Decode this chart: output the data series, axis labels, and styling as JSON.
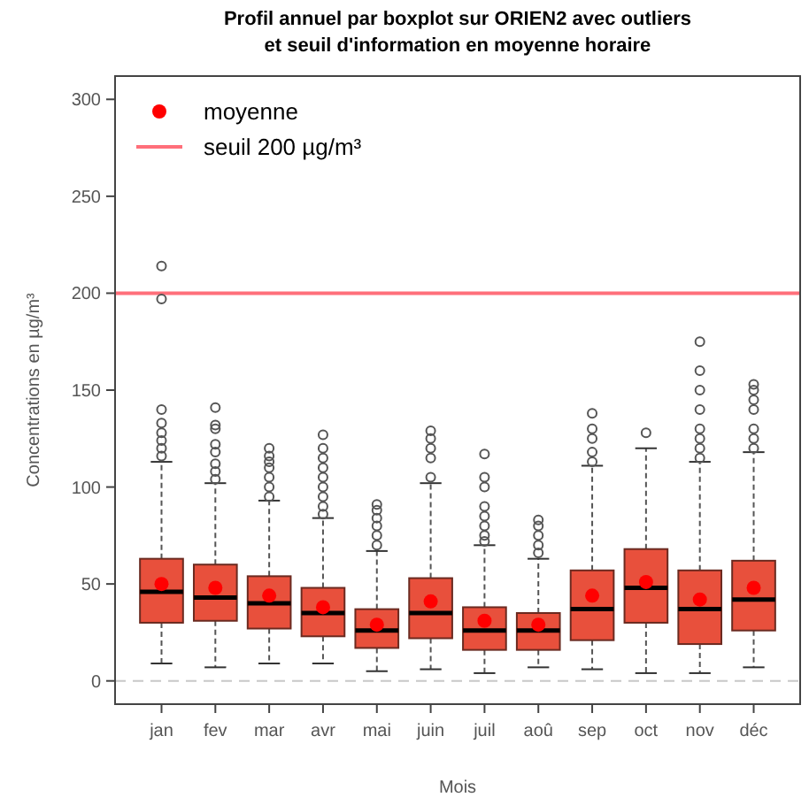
{
  "chart_data": {
    "type": "box",
    "title": "Profil annuel par boxplot sur ORIEN2 avec outliers\net seuil d'information en moyenne horaire",
    "xlabel": "Mois",
    "ylabel": "Concentrations en µg/m³",
    "categories": [
      "jan",
      "fev",
      "mar",
      "avr",
      "mai",
      "juin",
      "juil",
      "aoû",
      "sep",
      "oct",
      "nov",
      "déc"
    ],
    "ylim": [
      -12,
      312
    ],
    "yticks": [
      0,
      50,
      100,
      150,
      200,
      250,
      300
    ],
    "legend": "top left",
    "grid": false,
    "series": [
      {
        "type": "box",
        "color": "#e8503c",
        "boxes": [
          {
            "low": 9,
            "q1": 30,
            "median": 46,
            "q3": 63,
            "high": 113,
            "outliers": [
              116,
              120,
              124,
              128,
              133,
              140,
              197,
              214
            ]
          },
          {
            "low": 7,
            "q1": 31,
            "median": 43,
            "q3": 60,
            "high": 102,
            "outliers": [
              104,
              108,
              112,
              118,
              122,
              130,
              132,
              141
            ]
          },
          {
            "low": 9,
            "q1": 27,
            "median": 40,
            "q3": 54,
            "high": 93,
            "outliers": [
              95,
              100,
              105,
              110,
              113,
              116,
              120
            ]
          },
          {
            "low": 9,
            "q1": 23,
            "median": 35,
            "q3": 48,
            "high": 84,
            "outliers": [
              86,
              90,
              95,
              100,
              105,
              110,
              115,
              120,
              127
            ]
          },
          {
            "low": 5,
            "q1": 17,
            "median": 26,
            "q3": 37,
            "high": 67,
            "outliers": [
              70,
              75,
              80,
              84,
              88,
              91
            ]
          },
          {
            "low": 6,
            "q1": 22,
            "median": 35,
            "q3": 53,
            "high": 102,
            "outliers": [
              105,
              115,
              120,
              125,
              129
            ]
          },
          {
            "low": 4,
            "q1": 16,
            "median": 26,
            "q3": 38,
            "high": 70,
            "outliers": [
              72,
              75,
              80,
              85,
              90,
              100,
              105,
              117
            ]
          },
          {
            "low": 7,
            "q1": 16,
            "median": 26,
            "q3": 35,
            "high": 63,
            "outliers": [
              66,
              70,
              75,
              80,
              83
            ]
          },
          {
            "low": 6,
            "q1": 21,
            "median": 37,
            "q3": 57,
            "high": 111,
            "outliers": [
              113,
              118,
              125,
              130,
              138
            ]
          },
          {
            "low": 4,
            "q1": 30,
            "median": 48,
            "q3": 68,
            "high": 120,
            "outliers": [
              128
            ]
          },
          {
            "low": 4,
            "q1": 19,
            "median": 37,
            "q3": 57,
            "high": 113,
            "outliers": [
              115,
              120,
              125,
              130,
              140,
              150,
              160,
              175
            ]
          },
          {
            "low": 7,
            "q1": 26,
            "median": 42,
            "q3": 62,
            "high": 118,
            "outliers": [
              120,
              125,
              130,
              140,
              145,
              150,
              153
            ]
          }
        ]
      },
      {
        "type": "scatter",
        "name": "moyenne",
        "color": "#ff0000",
        "marker": "circle",
        "x": [
          "jan",
          "fev",
          "mar",
          "avr",
          "mai",
          "juin",
          "juil",
          "aoû",
          "sep",
          "oct",
          "nov",
          "déc"
        ],
        "values": [
          50,
          48,
          44,
          38,
          29,
          41,
          31,
          29,
          44,
          51,
          42,
          48
        ]
      }
    ],
    "ref_lines": [
      {
        "axis": "y",
        "value": 200,
        "label": "seuil 200 µg/m³",
        "color": "#ff6f7a",
        "line_style": "solid"
      },
      {
        "axis": "y",
        "value": 0,
        "color": "#c8c8c8",
        "line_style": "dashed"
      }
    ]
  }
}
